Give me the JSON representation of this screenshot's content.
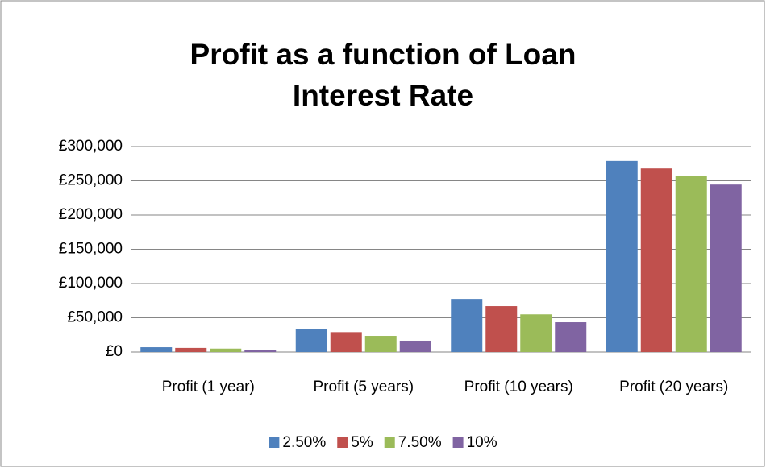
{
  "chart_data": {
    "type": "bar",
    "title": "Profit as a function of Loan Interest Rate",
    "categories": [
      "Profit (1 year)",
      "Profit (5 years)",
      "Profit (10 years)",
      "Profit (20 years)"
    ],
    "series": [
      {
        "name": "2.50%",
        "color": "#4f81bd",
        "values": [
          7000,
          34000,
          77500,
          279000
        ]
      },
      {
        "name": "5%",
        "color": "#c0504d",
        "values": [
          6000,
          29000,
          67000,
          268000
        ]
      },
      {
        "name": "7.50%",
        "color": "#9bbb59",
        "values": [
          5000,
          23500,
          55000,
          256500
        ]
      },
      {
        "name": "10%",
        "color": "#8064a2",
        "values": [
          3500,
          16500,
          43500,
          244500
        ]
      }
    ],
    "ylim": [
      0,
      300000
    ],
    "yticks": [
      {
        "value": 0,
        "label": "£0"
      },
      {
        "value": 50000,
        "label": "£50,000"
      },
      {
        "value": 100000,
        "label": "£100,000"
      },
      {
        "value": 150000,
        "label": "£150,000"
      },
      {
        "value": 200000,
        "label": "£200,000"
      },
      {
        "value": 250000,
        "label": "£250,000"
      },
      {
        "value": 300000,
        "label": "£300,000"
      }
    ],
    "grid": true,
    "legend": "bottom"
  }
}
